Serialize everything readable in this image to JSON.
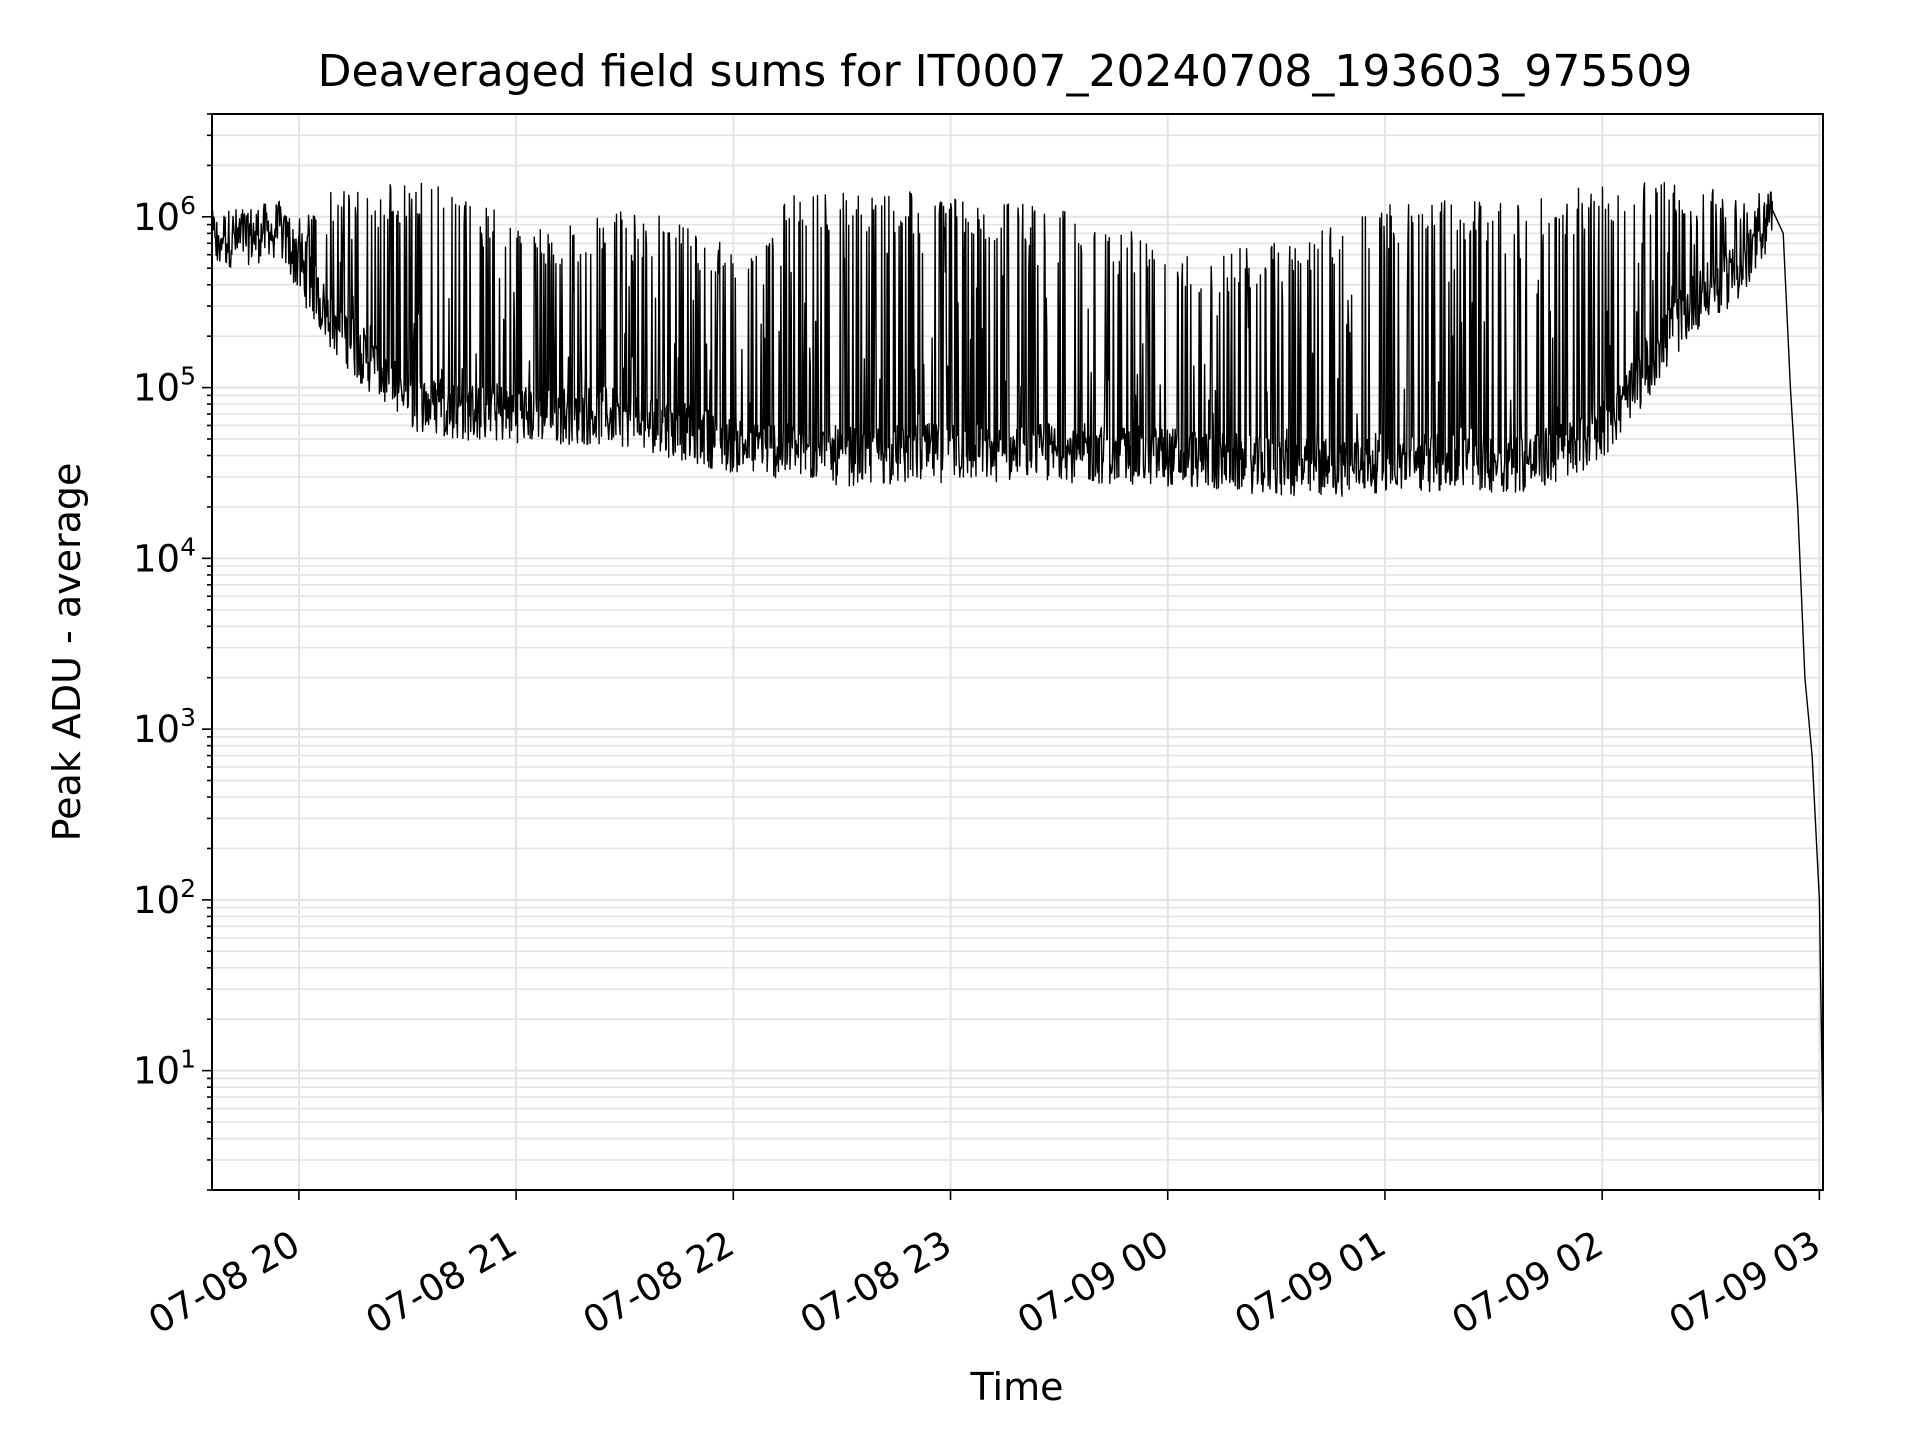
{
  "chart_data": {
    "type": "line",
    "title": "Deaveraged field sums for IT0007_20240708_193603_975509",
    "xlabel": "Time",
    "ylabel": "Peak ADU - average",
    "yscale": "log",
    "ylim": [
      2,
      4000000
    ],
    "xlim": [
      "2024-07-08 19:36",
      "2024-07-09 03:01"
    ],
    "grid": true,
    "x_ticks": [
      {
        "value": "2024-07-08 20:00",
        "label": "07-08 20"
      },
      {
        "value": "2024-07-08 21:00",
        "label": "07-08 21"
      },
      {
        "value": "2024-07-08 22:00",
        "label": "07-08 22"
      },
      {
        "value": "2024-07-08 23:00",
        "label": "07-08 23"
      },
      {
        "value": "2024-07-09 00:00",
        "label": "07-09 00"
      },
      {
        "value": "2024-07-09 01:00",
        "label": "07-09 01"
      },
      {
        "value": "2024-07-09 02:00",
        "label": "07-09 02"
      },
      {
        "value": "2024-07-09 03:00",
        "label": "07-09 03"
      }
    ],
    "y_ticks": [
      {
        "value": 10,
        "base": "10",
        "exp": "1"
      },
      {
        "value": 100,
        "base": "10",
        "exp": "2"
      },
      {
        "value": 1000,
        "base": "10",
        "exp": "3"
      },
      {
        "value": 10000,
        "base": "10",
        "exp": "4"
      },
      {
        "value": 100000,
        "base": "10",
        "exp": "5"
      },
      {
        "value": 1000000,
        "base": "10",
        "exp": "6"
      }
    ],
    "series": [
      {
        "color": "#000000",
        "low_envelope": [
          {
            "x": "2024-07-08 19:36",
            "y": 700000
          },
          {
            "x": "2024-07-08 19:55",
            "y": 800000
          },
          {
            "x": "2024-07-08 20:00",
            "y": 500000
          },
          {
            "x": "2024-07-08 20:08",
            "y": 250000
          },
          {
            "x": "2024-07-08 20:20",
            "y": 130000
          },
          {
            "x": "2024-07-08 20:30",
            "y": 80000
          },
          {
            "x": "2024-07-08 20:45",
            "y": 70000
          },
          {
            "x": "2024-07-08 21:30",
            "y": 65000
          },
          {
            "x": "2024-07-08 22:00",
            "y": 45000
          },
          {
            "x": "2024-07-08 22:30",
            "y": 38000
          },
          {
            "x": "2024-07-08 23:00",
            "y": 40000
          },
          {
            "x": "2024-07-08 23:30",
            "y": 40000
          },
          {
            "x": "2024-07-09 00:00",
            "y": 38000
          },
          {
            "x": "2024-07-09 00:40",
            "y": 32000
          },
          {
            "x": "2024-07-09 01:00",
            "y": 35000
          },
          {
            "x": "2024-07-09 01:40",
            "y": 35000
          },
          {
            "x": "2024-07-09 01:55",
            "y": 45000
          },
          {
            "x": "2024-07-09 02:05",
            "y": 70000
          },
          {
            "x": "2024-07-09 02:15",
            "y": 150000
          },
          {
            "x": "2024-07-09 02:25",
            "y": 300000
          },
          {
            "x": "2024-07-09 02:40",
            "y": 500000
          },
          {
            "x": "2024-07-09 02:47",
            "y": 1000000
          }
        ],
        "high_envelope": [
          {
            "x": "2024-07-08 19:36",
            "y": 900000
          },
          {
            "x": "2024-07-08 19:55",
            "y": 1000000
          },
          {
            "x": "2024-07-08 20:10",
            "y": 1500000
          },
          {
            "x": "2024-07-08 20:40",
            "y": 1600000
          },
          {
            "x": "2024-07-08 21:10",
            "y": 800000
          },
          {
            "x": "2024-07-08 21:30",
            "y": 1200000
          },
          {
            "x": "2024-07-08 22:00",
            "y": 700000
          },
          {
            "x": "2024-07-08 22:15",
            "y": 1400000
          },
          {
            "x": "2024-07-08 23:00",
            "y": 1400000
          },
          {
            "x": "2024-07-08 23:40",
            "y": 1000000
          },
          {
            "x": "2024-07-09 00:10",
            "y": 600000
          },
          {
            "x": "2024-07-09 00:40",
            "y": 800000
          },
          {
            "x": "2024-07-09 01:00",
            "y": 1200000
          },
          {
            "x": "2024-07-09 01:40",
            "y": 1300000
          },
          {
            "x": "2024-07-09 02:15",
            "y": 1800000
          },
          {
            "x": "2024-07-09 02:40",
            "y": 1400000
          }
        ],
        "tail": [
          {
            "x": "2024-07-09 02:47",
            "y": 1100000
          },
          {
            "x": "2024-07-09 02:50",
            "y": 800000
          },
          {
            "x": "2024-07-09 02:52",
            "y": 100000
          },
          {
            "x": "2024-07-09 02:54",
            "y": 20000
          },
          {
            "x": "2024-07-09 02:56",
            "y": 2000
          },
          {
            "x": "2024-07-09 02:58",
            "y": 700
          },
          {
            "x": "2024-07-09 03:00",
            "y": 100
          },
          {
            "x": "2024-07-09 03:01",
            "y": 4
          }
        ]
      }
    ]
  }
}
